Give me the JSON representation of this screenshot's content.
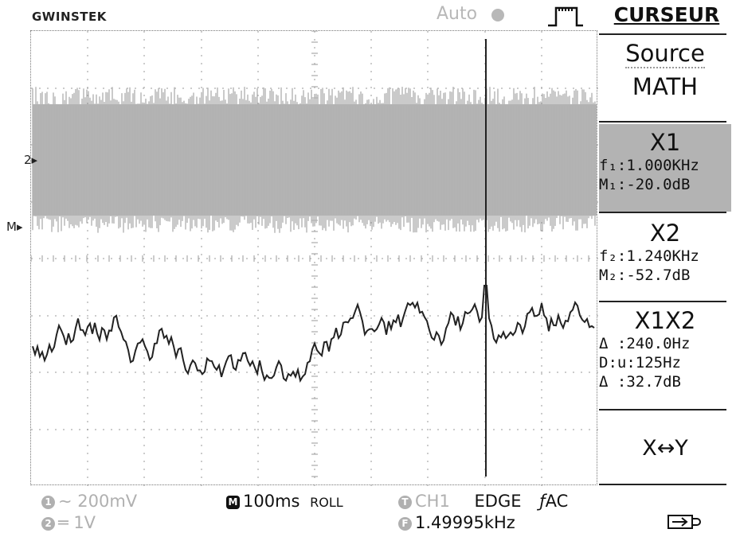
{
  "header": {
    "brand": "GWINSTEK",
    "trigger_mode": "Auto",
    "run_icon": "run-dot-icon",
    "acquire_icon": "roll-acquire-icon"
  },
  "markers": {
    "math_channel": "2",
    "math_marker": "M"
  },
  "menu": {
    "title": "CURSEUR",
    "source": {
      "label": "Source",
      "value": "MATH"
    },
    "x1": {
      "label": "X1",
      "freq": "f₁:1.000KHz",
      "mag": "M₁:-20.0dB"
    },
    "x2": {
      "label": "X2",
      "freq": "f₂:1.240KHz",
      "mag": "M₂:-52.7dB"
    },
    "x1x2": {
      "label": "X1X2",
      "delta_f": "Δ :240.0Hz",
      "div": "D:u:125Hz",
      "delta_m": "Δ :32.7dB"
    },
    "swap": "X↔Y"
  },
  "status": {
    "ch1": {
      "badge": "1",
      "text": "∼ 200mV"
    },
    "ch2": {
      "badge": "2",
      "text": "═ 1V"
    },
    "timebase": {
      "badge": "M",
      "text": "100ms",
      "mode": "ROLL"
    },
    "trigger": {
      "badge": "T",
      "source": "CH1",
      "type": "EDGE",
      "slope": "ƒ",
      "coupling": "AC"
    },
    "frequency": {
      "badge": "F",
      "text": "1.49995kHz"
    },
    "usb_icon": "usb-icon"
  },
  "colors": {
    "noise_band": "#b3b3b3",
    "trace": "#222222",
    "selected": "#b3b3b3"
  }
}
